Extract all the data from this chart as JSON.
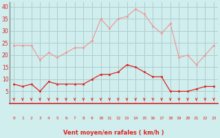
{
  "hours": [
    0,
    1,
    2,
    3,
    4,
    5,
    6,
    7,
    8,
    9,
    10,
    11,
    12,
    13,
    14,
    15,
    16,
    17,
    18,
    19,
    20,
    21,
    22,
    23
  ],
  "wind_avg": [
    8,
    7,
    8,
    5,
    9,
    8,
    8,
    8,
    8,
    10,
    12,
    12,
    13,
    16,
    15,
    13,
    11,
    11,
    5,
    5,
    5,
    6,
    7,
    7
  ],
  "wind_gust": [
    24,
    24,
    24,
    18,
    21,
    19,
    21,
    23,
    23,
    26,
    35,
    31,
    35,
    36,
    39,
    37,
    32,
    29,
    33,
    19,
    20,
    16,
    20,
    24
  ],
  "bg_color": "#d0eeee",
  "grid_color": "#b0cccc",
  "line_avg_color": "#dd2222",
  "line_gust_color": "#ee9999",
  "arrow_color": "#dd2222",
  "xlabel": "Vent moyen/en rafales ( km/h )",
  "xlabel_color": "#dd2222",
  "tick_color": "#dd2222",
  "spine_color": "#888888",
  "ylim": [
    0,
    42
  ],
  "yticks": [
    5,
    10,
    15,
    20,
    25,
    30,
    35,
    40
  ],
  "marker_avg": "s",
  "marker_gust": "s"
}
